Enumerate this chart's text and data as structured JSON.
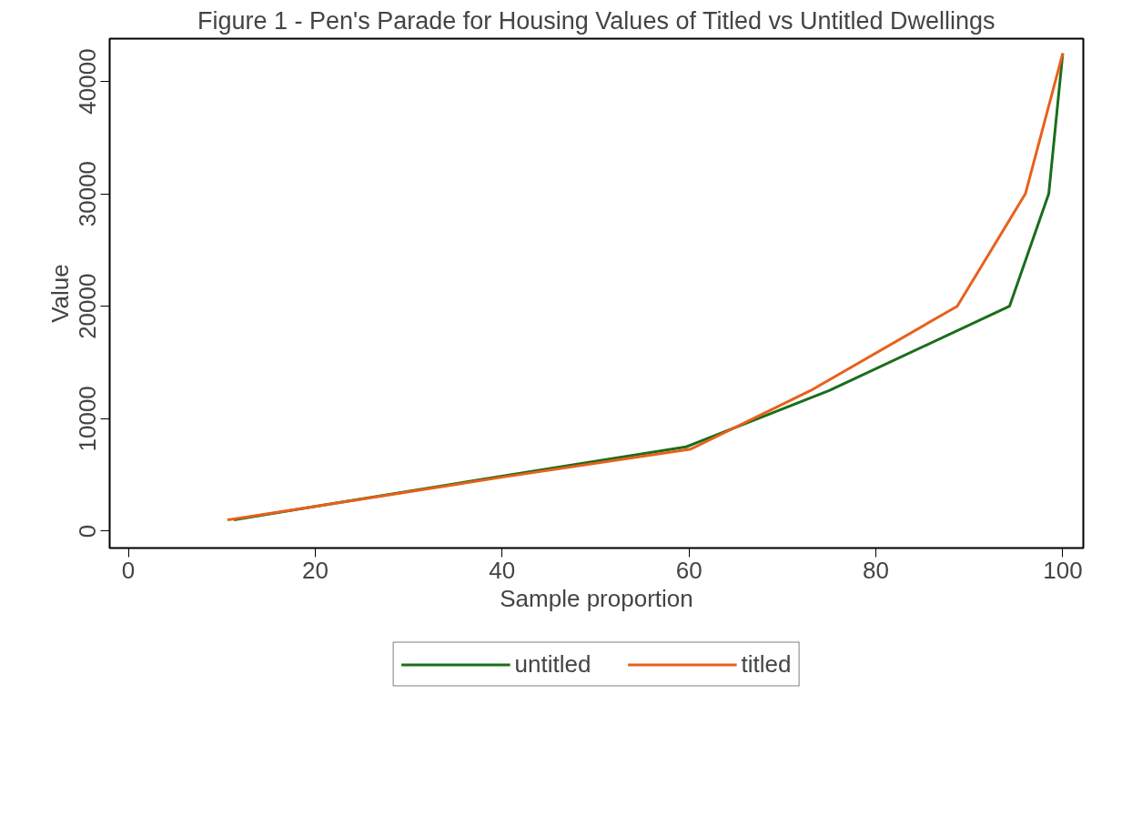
{
  "chart_data": {
    "type": "line",
    "title": "Figure 1 - Pen's Parade for Housing Values of Titled vs Untitled Dwellings",
    "xlabel": "Sample proportion",
    "ylabel": "Value",
    "series": [
      {
        "name": "untitled",
        "color": "#1a6e1a",
        "x": [
          11.3,
          20,
          40,
          59.7,
          75,
          94.3,
          98.5,
          100
        ],
        "values": [
          1000,
          2200,
          4900,
          7500,
          12500,
          20000,
          30000,
          42500
        ]
      },
      {
        "name": "titled",
        "color": "#e8601c",
        "x": [
          10.6,
          20,
          40,
          60.2,
          73,
          88.7,
          96,
          100
        ],
        "values": [
          1000,
          2200,
          4800,
          7300,
          12500,
          20000,
          30000,
          42500
        ]
      }
    ],
    "xlim": [
      -2,
      102.2
    ],
    "ylim": [
      -1500,
      43800
    ],
    "xticks": [
      0,
      20,
      40,
      60,
      80,
      100
    ],
    "yticks": [
      0,
      10000,
      20000,
      30000,
      40000
    ],
    "grid": false,
    "legend": "bottom",
    "marker": "none",
    "line_style": "solid"
  }
}
